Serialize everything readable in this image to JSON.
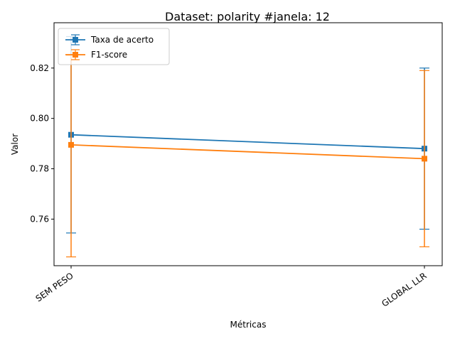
{
  "chart_data": {
    "type": "line",
    "title": "Dataset: polarity #janela: 12",
    "xlabel": "Métricas",
    "ylabel": "Valor",
    "categories": [
      "SEM PESO",
      "GLOBAL LLR"
    ],
    "ylim": [
      0.7415,
      0.838
    ],
    "yticks": [
      0.76,
      0.78,
      0.8,
      0.82
    ],
    "ytick_labels": [
      "0.76",
      "0.78",
      "0.80",
      "0.82"
    ],
    "grid": false,
    "legend_position": "upper-left",
    "series": [
      {
        "name": "Taxa de acerto",
        "color": "#1f77b4",
        "marker": "square",
        "values": [
          0.7935,
          0.788
        ],
        "err_low": [
          0.7545,
          0.756
        ],
        "err_high": [
          0.8325,
          0.82
        ]
      },
      {
        "name": "F1-score",
        "color": "#ff7f0e",
        "marker": "square",
        "values": [
          0.7895,
          0.784
        ],
        "err_low": [
          0.745,
          0.749
        ],
        "err_high": [
          0.825,
          0.819
        ]
      }
    ]
  }
}
